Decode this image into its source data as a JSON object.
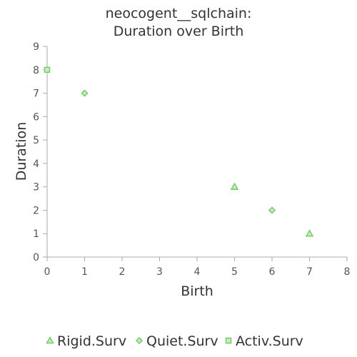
{
  "chart_data": {
    "type": "scatter",
    "title": [
      "neocogent__sqlchain:",
      "Duration over Birth"
    ],
    "xlabel": "Birth",
    "ylabel": "Duration",
    "xlim": [
      0,
      8
    ],
    "ylim": [
      0,
      9
    ],
    "xticks": [
      0,
      1,
      2,
      3,
      4,
      5,
      6,
      7,
      8
    ],
    "yticks": [
      0,
      1,
      2,
      3,
      4,
      5,
      6,
      7,
      8,
      9
    ],
    "grid": false,
    "legend_position": "bottom",
    "colors": {
      "marker_stroke": "#7ccd6e",
      "marker_fill": "#c9ecc2",
      "axis": "#aaaaaa"
    },
    "series": [
      {
        "name": "Rigid.Surv",
        "marker": "triangle",
        "points": [
          {
            "x": 5,
            "y": 3
          },
          {
            "x": 7,
            "y": 1
          }
        ]
      },
      {
        "name": "Quiet.Surv",
        "marker": "diamond",
        "points": [
          {
            "x": 1,
            "y": 7
          },
          {
            "x": 6,
            "y": 2
          }
        ]
      },
      {
        "name": "Activ.Surv",
        "marker": "square",
        "points": [
          {
            "x": 0,
            "y": 8
          }
        ]
      }
    ]
  }
}
